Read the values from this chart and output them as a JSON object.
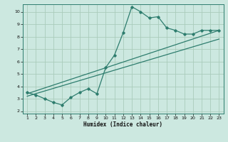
{
  "title": "",
  "xlabel": "Humidex (Indice chaleur)",
  "bg_color": "#cce8e0",
  "grid_color": "#aaccbb",
  "line_color": "#2e7d6e",
  "xlim": [
    0.5,
    23.5
  ],
  "ylim": [
    1.8,
    10.6
  ],
  "xticks": [
    1,
    2,
    3,
    4,
    5,
    6,
    7,
    8,
    9,
    10,
    11,
    12,
    13,
    14,
    15,
    16,
    17,
    18,
    19,
    20,
    21,
    22,
    23
  ],
  "yticks": [
    2,
    3,
    4,
    5,
    6,
    7,
    8,
    9,
    10
  ],
  "jagged_x": [
    1,
    2,
    3,
    4,
    5,
    6,
    7,
    8,
    9,
    10,
    11,
    12,
    13,
    14,
    15,
    16,
    17,
    18,
    19,
    20,
    21,
    22,
    23
  ],
  "jagged_y": [
    3.5,
    3.3,
    3.0,
    2.7,
    2.5,
    3.1,
    3.5,
    3.8,
    3.4,
    5.5,
    6.5,
    8.3,
    10.4,
    10.0,
    9.5,
    9.6,
    8.7,
    8.5,
    8.2,
    8.2,
    8.5,
    8.5,
    8.5
  ],
  "line1_x": [
    1,
    23
  ],
  "line1_y": [
    3.4,
    8.5
  ],
  "line2_x": [
    1,
    23
  ],
  "line2_y": [
    3.2,
    7.8
  ]
}
